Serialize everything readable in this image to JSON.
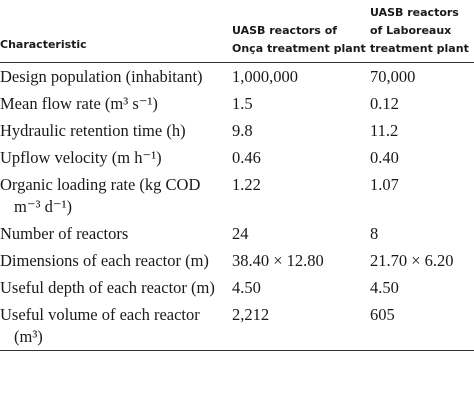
{
  "table": {
    "header": [
      "Characteristic",
      "UASB reactors of Onça treatment plant",
      "UASB reactors of Laboreaux treatment plant"
    ],
    "rows": [
      [
        "Design population (inhabitant)",
        "1,000,000",
        "70,000"
      ],
      [
        "Mean flow rate (m³ s⁻¹)",
        "1.5",
        "0.12"
      ],
      [
        "Hydraulic retention time (h)",
        "9.8",
        "11.2"
      ],
      [
        "Upflow velocity (m h⁻¹)",
        "0.46",
        "0.40"
      ],
      [
        "Organic loading rate (kg COD m⁻³ d⁻¹)",
        "1.22",
        "1.07"
      ],
      [
        "Number of reactors",
        "24",
        "8"
      ],
      [
        "Dimensions of each reactor (m)",
        "38.40 × 12.80",
        "21.70 × 6.20"
      ],
      [
        "Useful depth of each reactor (m)",
        "4.50",
        "4.50"
      ],
      [
        "Useful volume of each reactor (m³)",
        "2,212",
        "605"
      ]
    ]
  }
}
